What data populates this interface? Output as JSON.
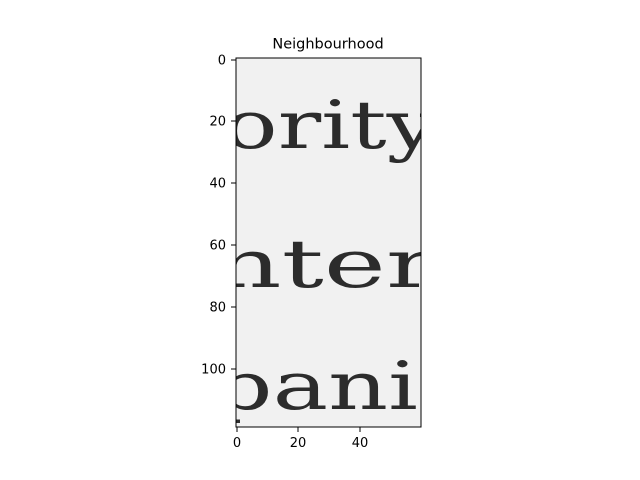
{
  "figure": {
    "title": "Neighbourhood",
    "x_ticks": [
      "0",
      "20",
      "40"
    ],
    "y_ticks": [
      "0",
      "20",
      "40",
      "60",
      "80",
      "100"
    ]
  },
  "image_text": {
    "line_1": "ority",
    "line_2": "nter",
    "line_3": "panie"
  },
  "colors": {
    "paper": "#f1f1f1",
    "ink": "#1e1e1e",
    "frame": "#000000"
  }
}
